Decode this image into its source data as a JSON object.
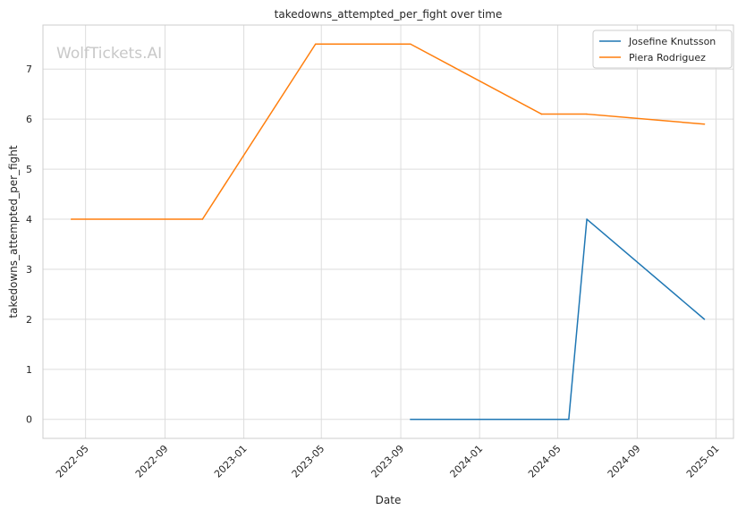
{
  "chart_data": {
    "type": "line",
    "title": "takedowns_attempted_per_fight over time",
    "xlabel": "Date",
    "ylabel": "takedowns_attempted_per_fight",
    "watermark": "WolfTickets.AI",
    "x_ticks": [
      "2022-05",
      "2022-09",
      "2023-01",
      "2023-05",
      "2023-09",
      "2024-01",
      "2024-05",
      "2024-09",
      "2025-01"
    ],
    "y_ticks": [
      0,
      1,
      2,
      3,
      4,
      5,
      6,
      7
    ],
    "xlim": [
      "2022-02-24",
      "2025-01-28"
    ],
    "ylim": [
      -0.38,
      7.88
    ],
    "grid": true,
    "legend_position": "top-right",
    "series": [
      {
        "name": "Josefine Knutsson",
        "color": "#1f77b4",
        "points": [
          {
            "x": "2023-09-16",
            "y": 0
          },
          {
            "x": "2024-05-18",
            "y": 0
          },
          {
            "x": "2024-06-15",
            "y": 4
          },
          {
            "x": "2024-12-14",
            "y": 2
          }
        ]
      },
      {
        "name": "Piera Rodriguez",
        "color": "#ff7f0e",
        "points": [
          {
            "x": "2022-04-09",
            "y": 4
          },
          {
            "x": "2022-10-29",
            "y": 4
          },
          {
            "x": "2023-04-22",
            "y": 7.5
          },
          {
            "x": "2023-09-16",
            "y": 7.5
          },
          {
            "x": "2024-04-06",
            "y": 6.1
          },
          {
            "x": "2024-06-15",
            "y": 6.1
          },
          {
            "x": "2024-12-14",
            "y": 5.9
          }
        ]
      }
    ]
  }
}
